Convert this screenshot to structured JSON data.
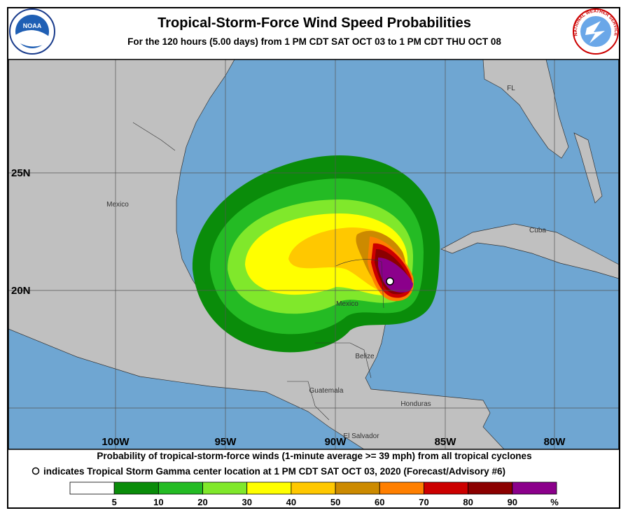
{
  "header": {
    "title": "Tropical-Storm-Force Wind Speed Probabilities",
    "subtitle": "For the 120 hours (5.00 days) from 1 PM CDT SAT OCT 03 to 1 PM CDT THU OCT 08"
  },
  "logos": {
    "noaa": "NOAA",
    "nws": "NATIONAL WEATHER SERVICE"
  },
  "map": {
    "lat_labels": [
      "25N",
      "20N"
    ],
    "lon_labels": [
      "100W",
      "95W",
      "90W",
      "85W",
      "80W"
    ],
    "places": [
      "Mexico",
      "Mexico",
      "Cuba",
      "FL",
      "Belize",
      "Guatemala",
      "Honduras",
      "El Salvador"
    ]
  },
  "footer": {
    "lines": [
      "Probability of tropical-storm-force winds (1-minute average >= 39 mph) from all tropical cyclones",
      "indicates Tropical Storm Gamma center location at 1 PM CDT SAT OCT 03, 2020 (Forecast/Advisory #6)"
    ]
  },
  "legend": {
    "colors": [
      "#ffffff",
      "#0a8c0a",
      "#24bb24",
      "#80e82b",
      "#ffff00",
      "#ffc800",
      "#cc8a00",
      "#ff7f00",
      "#cc0000",
      "#8b0000",
      "#8b008b"
    ],
    "ticks": [
      5,
      10,
      20,
      30,
      40,
      50,
      60,
      70,
      80,
      90
    ],
    "unit": "%"
  }
}
